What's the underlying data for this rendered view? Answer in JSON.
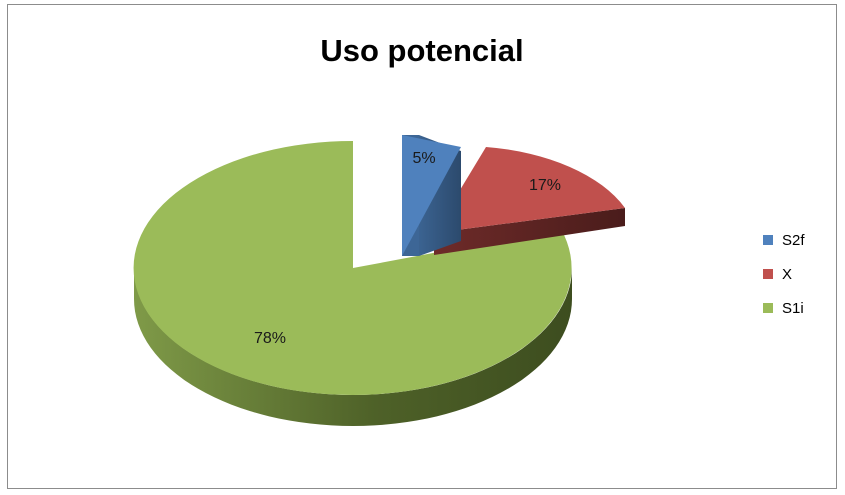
{
  "chart_data": {
    "type": "pie",
    "title": "Uso potencial",
    "series": [
      {
        "name": "S2f",
        "value": 5,
        "label": "5%",
        "color": "#4f81bd"
      },
      {
        "name": "X",
        "value": 17,
        "label": "17%",
        "color": "#c0504d"
      },
      {
        "name": "S1i",
        "value": 78,
        "label": "78%",
        "color": "#9bbb59"
      }
    ],
    "legend_position": "right",
    "style": "3d-exploded"
  }
}
